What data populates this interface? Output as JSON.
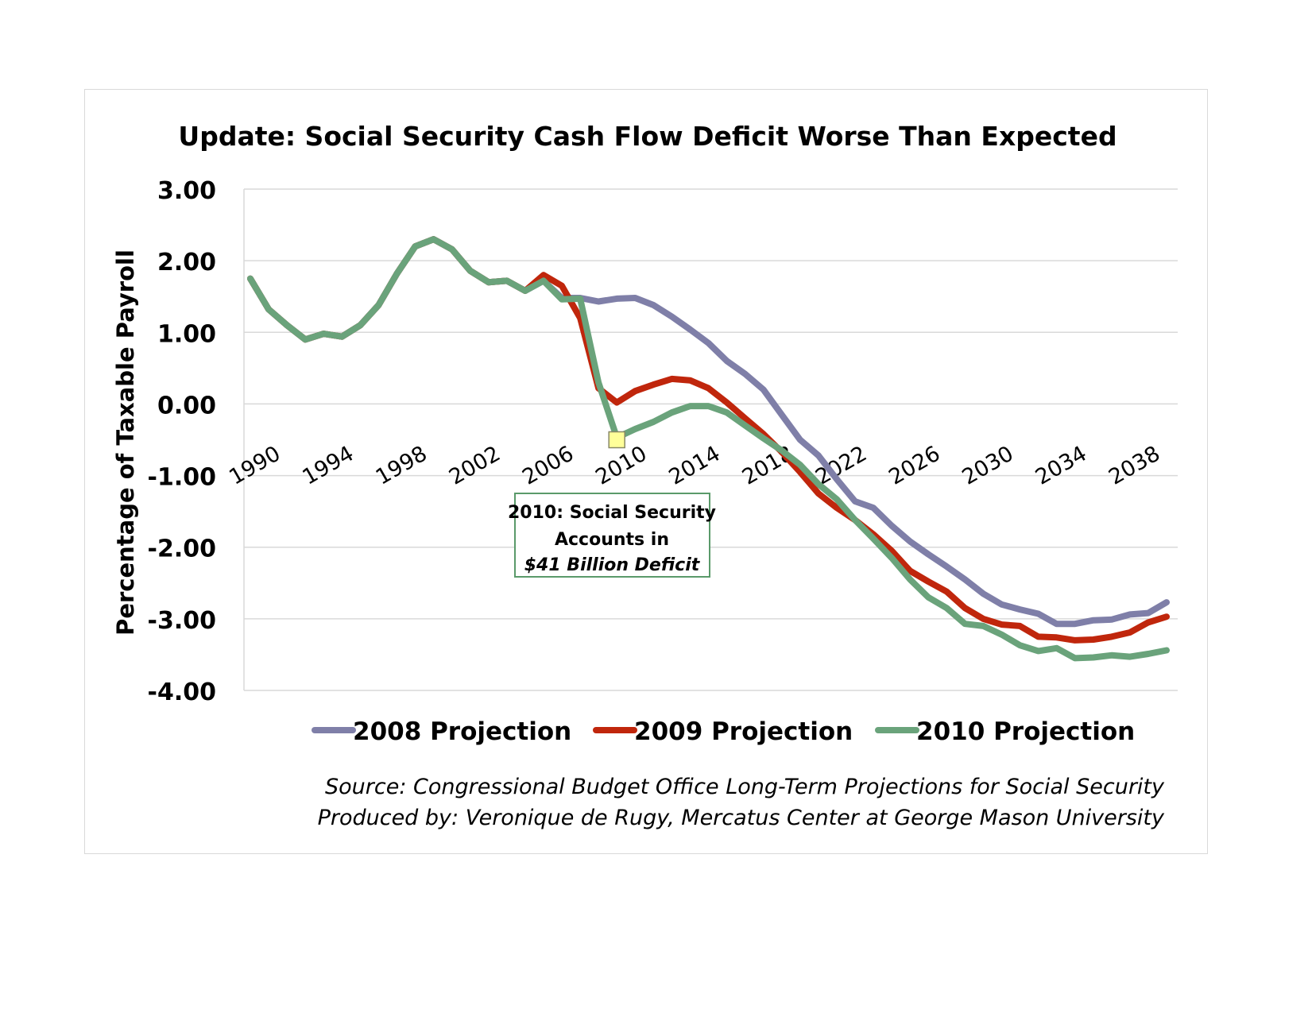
{
  "chart_data": {
    "type": "line",
    "title": "Update: Social Security Cash Flow Deficit Worse Than Expected",
    "xlabel": "",
    "ylabel": "Percentage of Taxable Payroll",
    "xlim": [
      1990,
      2040
    ],
    "ylim": [
      -4,
      3
    ],
    "yticks": [
      3,
      2,
      1,
      0,
      -1,
      -2,
      -3,
      -4
    ],
    "ytick_labels": [
      "3.00",
      "2.00",
      "1.00",
      "0.00",
      "-1.00",
      "-2.00",
      "-3.00",
      "-4.00"
    ],
    "xticks": [
      1990,
      1994,
      1998,
      2002,
      2006,
      2010,
      2014,
      2018,
      2022,
      2026,
      2030,
      2034,
      2038
    ],
    "xtick_labels": [
      "1990",
      "1994",
      "1998",
      "2002",
      "2006",
      "2010",
      "2014",
      "2018",
      "2022",
      "2026",
      "2030",
      "2034",
      "2038"
    ],
    "grid": true,
    "legend_position": "bottom",
    "x": [
      1990,
      1991,
      1992,
      1993,
      1994,
      1995,
      1996,
      1997,
      1998,
      1999,
      2000,
      2001,
      2002,
      2003,
      2004,
      2005,
      2006,
      2007,
      2008,
      2009,
      2010,
      2011,
      2012,
      2013,
      2014,
      2015,
      2016,
      2017,
      2018,
      2019,
      2020,
      2021,
      2022,
      2023,
      2024,
      2025,
      2026,
      2027,
      2028,
      2029,
      2030,
      2031,
      2032,
      2033,
      2034,
      2035,
      2036,
      2037,
      2038,
      2039,
      2040
    ],
    "series": [
      {
        "name": "2008 Projection",
        "color": "#7f7fa8",
        "values": [
          1.75,
          1.32,
          1.1,
          0.9,
          0.98,
          0.94,
          1.1,
          1.38,
          1.82,
          2.2,
          2.3,
          2.16,
          1.86,
          1.7,
          1.72,
          1.58,
          1.72,
          1.48,
          1.48,
          1.43,
          1.47,
          1.48,
          1.38,
          1.22,
          1.04,
          0.85,
          0.6,
          0.42,
          0.2,
          -0.15,
          -0.5,
          -0.72,
          -1.05,
          -1.36,
          -1.45,
          -1.7,
          -1.92,
          -2.1,
          -2.27,
          -2.45,
          -2.65,
          -2.8,
          -2.87,
          -2.93,
          -3.07,
          -3.07,
          -3.02,
          -3.01,
          -2.94,
          -2.92,
          -2.77
        ]
      },
      {
        "name": "2009 Projection",
        "color": "#c0260c",
        "values": [
          1.75,
          1.32,
          1.1,
          0.9,
          0.98,
          0.94,
          1.1,
          1.38,
          1.82,
          2.2,
          2.3,
          2.16,
          1.86,
          1.7,
          1.72,
          1.58,
          1.8,
          1.65,
          1.2,
          0.22,
          0.02,
          0.18,
          0.27,
          0.35,
          0.33,
          0.22,
          0.02,
          -0.2,
          -0.42,
          -0.67,
          -0.95,
          -1.25,
          -1.45,
          -1.62,
          -1.82,
          -2.05,
          -2.33,
          -2.48,
          -2.62,
          -2.85,
          -3.0,
          -3.08,
          -3.1,
          -3.25,
          -3.26,
          -3.3,
          -3.29,
          -3.25,
          -3.19,
          -3.05,
          -2.97
        ]
      },
      {
        "name": "2010 Projection",
        "color": "#6aa37b",
        "values": [
          1.75,
          1.32,
          1.1,
          0.9,
          0.98,
          0.94,
          1.1,
          1.38,
          1.82,
          2.2,
          2.3,
          2.16,
          1.86,
          1.7,
          1.72,
          1.58,
          1.72,
          1.46,
          1.47,
          0.3,
          -0.47,
          -0.35,
          -0.25,
          -0.12,
          -0.03,
          -0.03,
          -0.12,
          -0.3,
          -0.48,
          -0.65,
          -0.85,
          -1.12,
          -1.33,
          -1.62,
          -1.88,
          -2.15,
          -2.45,
          -2.7,
          -2.85,
          -3.07,
          -3.1,
          -3.22,
          -3.37,
          -3.45,
          -3.41,
          -3.55,
          -3.54,
          -3.51,
          -3.53,
          -3.49,
          -3.44
        ]
      }
    ],
    "annotation": {
      "year": 2010,
      "value": -0.5,
      "lines": [
        "2010: Social Security",
        "Accounts in",
        "$41 Billion Deficit"
      ],
      "box_border": "#5a9a6a",
      "marker_color": "#ffff99"
    },
    "source_lines": [
      "Source: Congressional Budget Office Long-Term Projections for Social  Security",
      "Produced by: Veronique de Rugy, Mercatus Center at George Mason University"
    ]
  }
}
